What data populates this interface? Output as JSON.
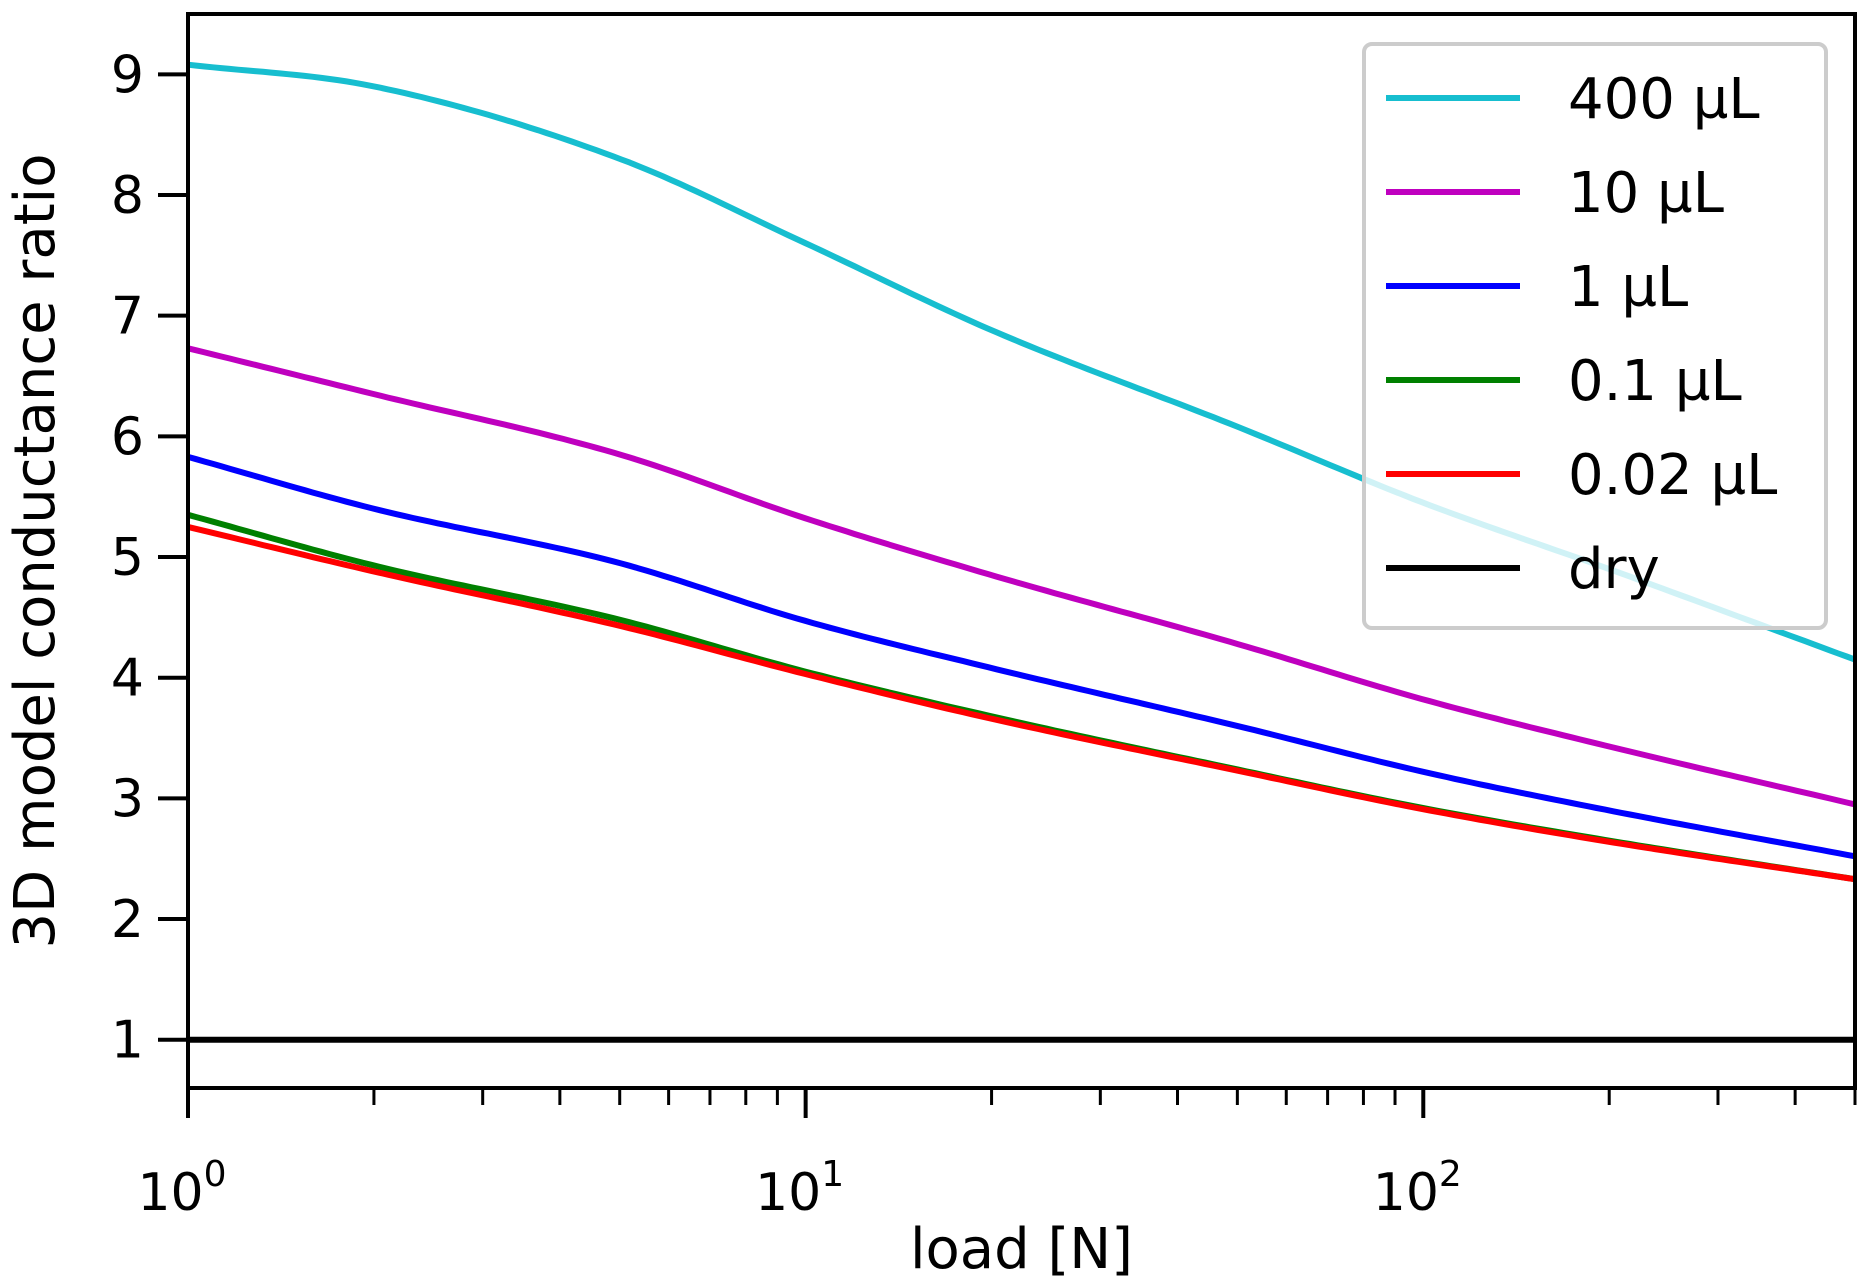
{
  "chart_data": {
    "type": "line",
    "title": "",
    "xlabel": "load [N]",
    "ylabel": "3D model conductance ratio",
    "xscale": "log",
    "xlim": [
      1,
      500
    ],
    "ylim": [
      0.6,
      9.5
    ],
    "x_ticks": [
      {
        "value": 1,
        "base": "10",
        "exp": "0"
      },
      {
        "value": 10,
        "base": "10",
        "exp": "1"
      },
      {
        "value": 100,
        "base": "10",
        "exp": "2"
      }
    ],
    "y_ticks": [
      {
        "value": 1,
        "label": "1"
      },
      {
        "value": 2,
        "label": "2"
      },
      {
        "value": 3,
        "label": "3"
      },
      {
        "value": 4,
        "label": "4"
      },
      {
        "value": 5,
        "label": "5"
      },
      {
        "value": 6,
        "label": "6"
      },
      {
        "value": 7,
        "label": "7"
      },
      {
        "value": 8,
        "label": "8"
      },
      {
        "value": 9,
        "label": "9"
      }
    ],
    "legend_position": "top-right",
    "x": [
      1,
      2,
      5,
      10,
      20,
      50,
      100,
      200,
      500
    ],
    "series": [
      {
        "name": "400 µL",
        "color": "#17becf",
        "values": [
          9.08,
          8.9,
          8.3,
          7.6,
          6.88,
          6.08,
          5.45,
          4.9,
          4.15
        ]
      },
      {
        "name": "10 µL",
        "color": "#bf00bf",
        "values": [
          6.73,
          6.35,
          5.85,
          5.32,
          4.85,
          4.28,
          3.82,
          3.43,
          2.95
        ]
      },
      {
        "name": "1 µL",
        "color": "#0000ff",
        "values": [
          5.83,
          5.4,
          4.95,
          4.47,
          4.08,
          3.6,
          3.22,
          2.9,
          2.52
        ]
      },
      {
        "name": "0.1 µL",
        "color": "#008000",
        "values": [
          5.35,
          4.93,
          4.48,
          4.05,
          3.68,
          3.24,
          2.92,
          2.65,
          2.33
        ]
      },
      {
        "name": "0.02 µL",
        "color": "#ff0000",
        "values": [
          5.25,
          4.88,
          4.43,
          4.03,
          3.66,
          3.23,
          2.91,
          2.64,
          2.33
        ]
      },
      {
        "name": "dry",
        "color": "#000000",
        "values": [
          1,
          1,
          1,
          1,
          1,
          1,
          1,
          1,
          1
        ]
      }
    ]
  }
}
